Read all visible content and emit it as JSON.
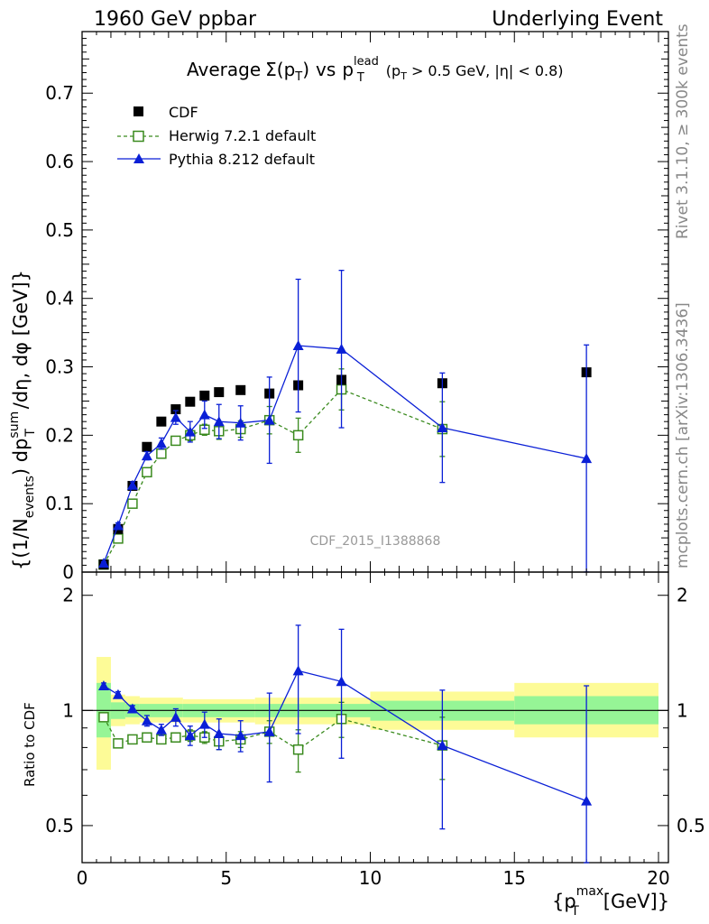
{
  "header": {
    "left": "1960 GeV ppbar",
    "right": "Underlying Event"
  },
  "side_text": {
    "rivet": "Rivet 3.1.10, ≥ 300k events",
    "mcplots": "mcplots.cern.ch [arXiv:1306.3436]"
  },
  "watermark": "CDF_2015_I1388868",
  "colors": {
    "cdf": "#000000",
    "herwig": "#3a8a1e",
    "pythia": "#0a1fd6",
    "band_yellow": "#fdfb97",
    "band_green": "#96f596"
  },
  "chart_data": [
    {
      "panel": "main",
      "type": "scatter",
      "title_parts": {
        "average": "Average",
        "sigma": "Σ(p",
        "sigma_sub": "T",
        "sigma_close": ")",
        "vs": "vs",
        "p": "p",
        "sup": "lead",
        "sub": "T",
        "cut_open": "(p",
        "cut_sub": "T",
        "cut_rest": "> 0.5 GeV, |η| < 0.8)"
      },
      "ylabel_parts": {
        "a": "{(1/N",
        "a_sub": "events",
        "b": ") dp",
        "b_sup": "sum",
        "b_sub": "T",
        "c": "/dη, dφ [GeV]}"
      },
      "xlim": [
        0,
        20
      ],
      "ylim": [
        0,
        0.79
      ],
      "yticks": [
        0,
        0.1,
        0.2,
        0.3,
        0.4,
        0.5,
        0.6,
        0.7
      ],
      "ytick_labels": [
        "0",
        "0.1",
        "0.2",
        "0.3",
        "0.4",
        "0.5",
        "0.6",
        "0.7"
      ],
      "legend": [
        "CDF",
        "Herwig 7.2.1 default",
        "Pythia 8.212 default"
      ],
      "legend_position": "top-left",
      "series": [
        {
          "name": "CDF",
          "marker": "filled-square",
          "x": [
            0.75,
            1.25,
            1.75,
            2.25,
            2.75,
            3.25,
            3.75,
            4.25,
            4.75,
            5.5,
            6.5,
            7.5,
            9.0,
            12.5,
            17.5
          ],
          "y": [
            0.011,
            0.063,
            0.126,
            0.183,
            0.22,
            0.238,
            0.249,
            0.258,
            0.263,
            0.266,
            0.261,
            0.273,
            0.281,
            0.276,
            0.292
          ]
        },
        {
          "name": "Herwig 7.2.1 default",
          "marker": "open-square",
          "line": "dashed",
          "x": [
            0.75,
            1.25,
            1.75,
            2.25,
            2.75,
            3.25,
            3.75,
            4.25,
            4.75,
            5.5,
            6.5,
            7.5,
            9.0,
            12.5
          ],
          "y": [
            0.011,
            0.049,
            0.1,
            0.146,
            0.173,
            0.192,
            0.2,
            0.208,
            0.206,
            0.209,
            0.222,
            0.2,
            0.267,
            0.209
          ],
          "err": [
            0.002,
            0.004,
            0.004,
            0.004,
            0.004,
            0.005,
            0.008,
            0.008,
            0.012,
            0.012,
            0.02,
            0.025,
            0.03,
            0.04
          ]
        },
        {
          "name": "Pythia 8.212 default",
          "marker": "filled-triangle",
          "line": "solid",
          "x": [
            0.75,
            1.25,
            1.75,
            2.25,
            2.75,
            3.25,
            3.75,
            4.25,
            4.75,
            5.5,
            6.5,
            7.5,
            9.0,
            12.5,
            17.5
          ],
          "y": [
            0.013,
            0.068,
            0.127,
            0.17,
            0.188,
            0.226,
            0.205,
            0.23,
            0.22,
            0.218,
            0.222,
            0.331,
            0.326,
            0.211,
            0.166
          ],
          "err": [
            0.002,
            0.004,
            0.005,
            0.006,
            0.008,
            0.01,
            0.015,
            0.02,
            0.025,
            0.025,
            0.063,
            0.097,
            0.115,
            0.08,
            0.166
          ]
        }
      ]
    },
    {
      "panel": "ratio",
      "type": "scatter",
      "ylabel": "Ratio to CDF",
      "xlabel_parts": {
        "open": "{p",
        "sup": "max",
        "sub": "T",
        "rest": "[GeV]}"
      },
      "xlim": [
        0,
        20
      ],
      "ylim": [
        0.4,
        2.3
      ],
      "log_y": true,
      "xticks": [
        0,
        5,
        10,
        15,
        20
      ],
      "xtick_labels": [
        "0",
        "5",
        "10",
        "15",
        "20"
      ],
      "yticks": [
        0.5,
        1,
        2
      ],
      "ytick_labels": [
        "0.5",
        "1",
        "2"
      ],
      "reference_line": 1,
      "bands": [
        {
          "x": [
            0.5,
            1.0
          ],
          "yellow": [
            0.7,
            1.38
          ],
          "green": [
            0.85,
            1.18
          ]
        },
        {
          "x": [
            1.0,
            1.5
          ],
          "yellow": [
            0.91,
            1.1
          ],
          "green": [
            0.95,
            1.05
          ]
        },
        {
          "x": [
            1.5,
            2.0
          ],
          "yellow": [
            0.92,
            1.09
          ],
          "green": [
            0.96,
            1.04
          ]
        },
        {
          "x": [
            2.0,
            3.5
          ],
          "yellow": [
            0.93,
            1.08
          ],
          "green": [
            0.96,
            1.04
          ]
        },
        {
          "x": [
            3.5,
            6.0
          ],
          "yellow": [
            0.93,
            1.07
          ],
          "green": [
            0.96,
            1.04
          ]
        },
        {
          "x": [
            6.0,
            10.0
          ],
          "yellow": [
            0.92,
            1.08
          ],
          "green": [
            0.96,
            1.04
          ]
        },
        {
          "x": [
            10.0,
            15.0
          ],
          "yellow": [
            0.89,
            1.12
          ],
          "green": [
            0.94,
            1.06
          ]
        },
        {
          "x": [
            15.0,
            20.0
          ],
          "yellow": [
            0.85,
            1.18
          ],
          "green": [
            0.92,
            1.09
          ]
        }
      ],
      "series": [
        {
          "name": "Herwig 7.2.1 default",
          "marker": "open-square",
          "line": "dashed",
          "x": [
            0.75,
            1.25,
            1.75,
            2.25,
            2.75,
            3.25,
            3.75,
            4.25,
            4.75,
            5.5,
            6.5,
            7.5,
            9.0,
            12.5
          ],
          "y": [
            0.96,
            0.82,
            0.84,
            0.85,
            0.84,
            0.85,
            0.86,
            0.85,
            0.83,
            0.84,
            0.88,
            0.79,
            0.95,
            0.81
          ],
          "err": [
            0.02,
            0.02,
            0.02,
            0.02,
            0.02,
            0.02,
            0.03,
            0.03,
            0.04,
            0.04,
            0.06,
            0.1,
            0.1,
            0.15
          ]
        },
        {
          "name": "Pythia 8.212 default",
          "marker": "filled-triangle",
          "line": "solid",
          "x": [
            0.75,
            1.25,
            1.75,
            2.25,
            2.75,
            3.25,
            3.75,
            4.25,
            4.75,
            5.5,
            6.5,
            7.5,
            9.0,
            12.5,
            17.5
          ],
          "y": [
            1.16,
            1.1,
            1.01,
            0.94,
            0.89,
            0.96,
            0.86,
            0.92,
            0.87,
            0.86,
            0.88,
            1.27,
            1.19,
            0.81,
            0.58
          ],
          "err": [
            0.02,
            0.02,
            0.02,
            0.03,
            0.03,
            0.05,
            0.05,
            0.07,
            0.08,
            0.08,
            0.23,
            0.4,
            0.44,
            0.32,
            0.58
          ]
        }
      ]
    }
  ]
}
